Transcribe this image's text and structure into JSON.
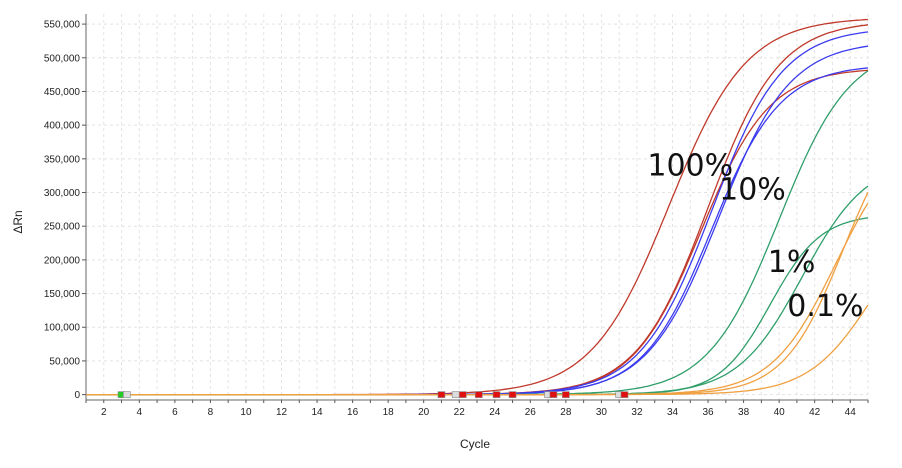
{
  "chart_data": {
    "type": "line",
    "xlabel": "Cycle",
    "ylabel": "ΔRn",
    "xlim": [
      1,
      45
    ],
    "ylim": [
      -8000,
      565000
    ],
    "x_ticks": [
      2,
      4,
      6,
      8,
      10,
      12,
      14,
      16,
      18,
      20,
      22,
      24,
      26,
      28,
      30,
      32,
      34,
      36,
      38,
      40,
      42,
      44
    ],
    "y_ticks": [
      0,
      50000,
      100000,
      150000,
      200000,
      250000,
      300000,
      350000,
      400000,
      450000,
      500000,
      550000
    ],
    "y_tick_labels": [
      "0",
      "50,000",
      "100,000",
      "150,000",
      "200,000",
      "250,000",
      "300,000",
      "350,000",
      "400,000",
      "450,000",
      "500,000",
      "550,000"
    ],
    "grid": true,
    "colors": {
      "red": "#c0392b",
      "blue": "#3b3bf0",
      "green": "#2e9e6a",
      "orange": "#f0a040"
    },
    "series": [
      {
        "group": "100%",
        "color": "#c0392b",
        "plateau": 560000,
        "midpoint": 33.8,
        "slope": 0.46
      },
      {
        "group": "100%",
        "color": "#c0392b",
        "plateau": 555000,
        "midpoint": 36.0,
        "slope": 0.5
      },
      {
        "group": "100%",
        "color": "#c0392b",
        "plateau": 485000,
        "midpoint": 35.6,
        "slope": 0.52
      },
      {
        "group": "10%",
        "color": "#3b3bf0",
        "plateau": 545000,
        "midpoint": 36.2,
        "slope": 0.5
      },
      {
        "group": "10%",
        "color": "#3b3bf0",
        "plateau": 525000,
        "midpoint": 36.6,
        "slope": 0.5
      },
      {
        "group": "10%",
        "color": "#3b3bf0",
        "plateau": 490000,
        "midpoint": 36.2,
        "slope": 0.52
      },
      {
        "group": "1%",
        "color": "#2e9e6a",
        "plateau": 520000,
        "midpoint": 40.0,
        "slope": 0.5
      },
      {
        "group": "1%",
        "color": "#2e9e6a",
        "plateau": 350000,
        "midpoint": 41.3,
        "slope": 0.55
      },
      {
        "group": "1%",
        "color": "#2e9e6a",
        "plateau": 268000,
        "midpoint": 39.5,
        "slope": 0.7
      },
      {
        "group": "0.1%",
        "color": "#f0a040",
        "plateau": 430000,
        "midpoint": 43.6,
        "slope": 0.6
      },
      {
        "group": "0.1%",
        "color": "#f0a040",
        "plateau": 390000,
        "midpoint": 43.2,
        "slope": 0.55
      },
      {
        "group": "0.1%",
        "color": "#f0a040",
        "plateau": 290000,
        "midpoint": 45.3,
        "slope": 0.55
      }
    ],
    "annotations": [
      {
        "text": "100%",
        "x": 35.0,
        "y": 325000
      },
      {
        "text": "10%",
        "x": 38.5,
        "y": 290000
      },
      {
        "text": "1%",
        "x": 40.7,
        "y": 182000
      },
      {
        "text": "0.1%",
        "x": 42.6,
        "y": 117000
      }
    ],
    "markers": [
      {
        "x": 3.0,
        "fill": "#22cc22"
      },
      {
        "x": 3.3,
        "fill": "#dddddd"
      },
      {
        "x": 21.0,
        "fill": "#e01010"
      },
      {
        "x": 21.8,
        "fill": "#dddddd"
      },
      {
        "x": 22.2,
        "fill": "#e01010"
      },
      {
        "x": 23.1,
        "fill": "#e01010"
      },
      {
        "x": 24.1,
        "fill": "#e01010"
      },
      {
        "x": 25.0,
        "fill": "#e01010"
      },
      {
        "x": 27.0,
        "fill": "#dddddd"
      },
      {
        "x": 27.3,
        "fill": "#e01010"
      },
      {
        "x": 28.0,
        "fill": "#e01010"
      },
      {
        "x": 31.0,
        "fill": "#dddddd"
      },
      {
        "x": 31.3,
        "fill": "#e01010"
      }
    ]
  }
}
